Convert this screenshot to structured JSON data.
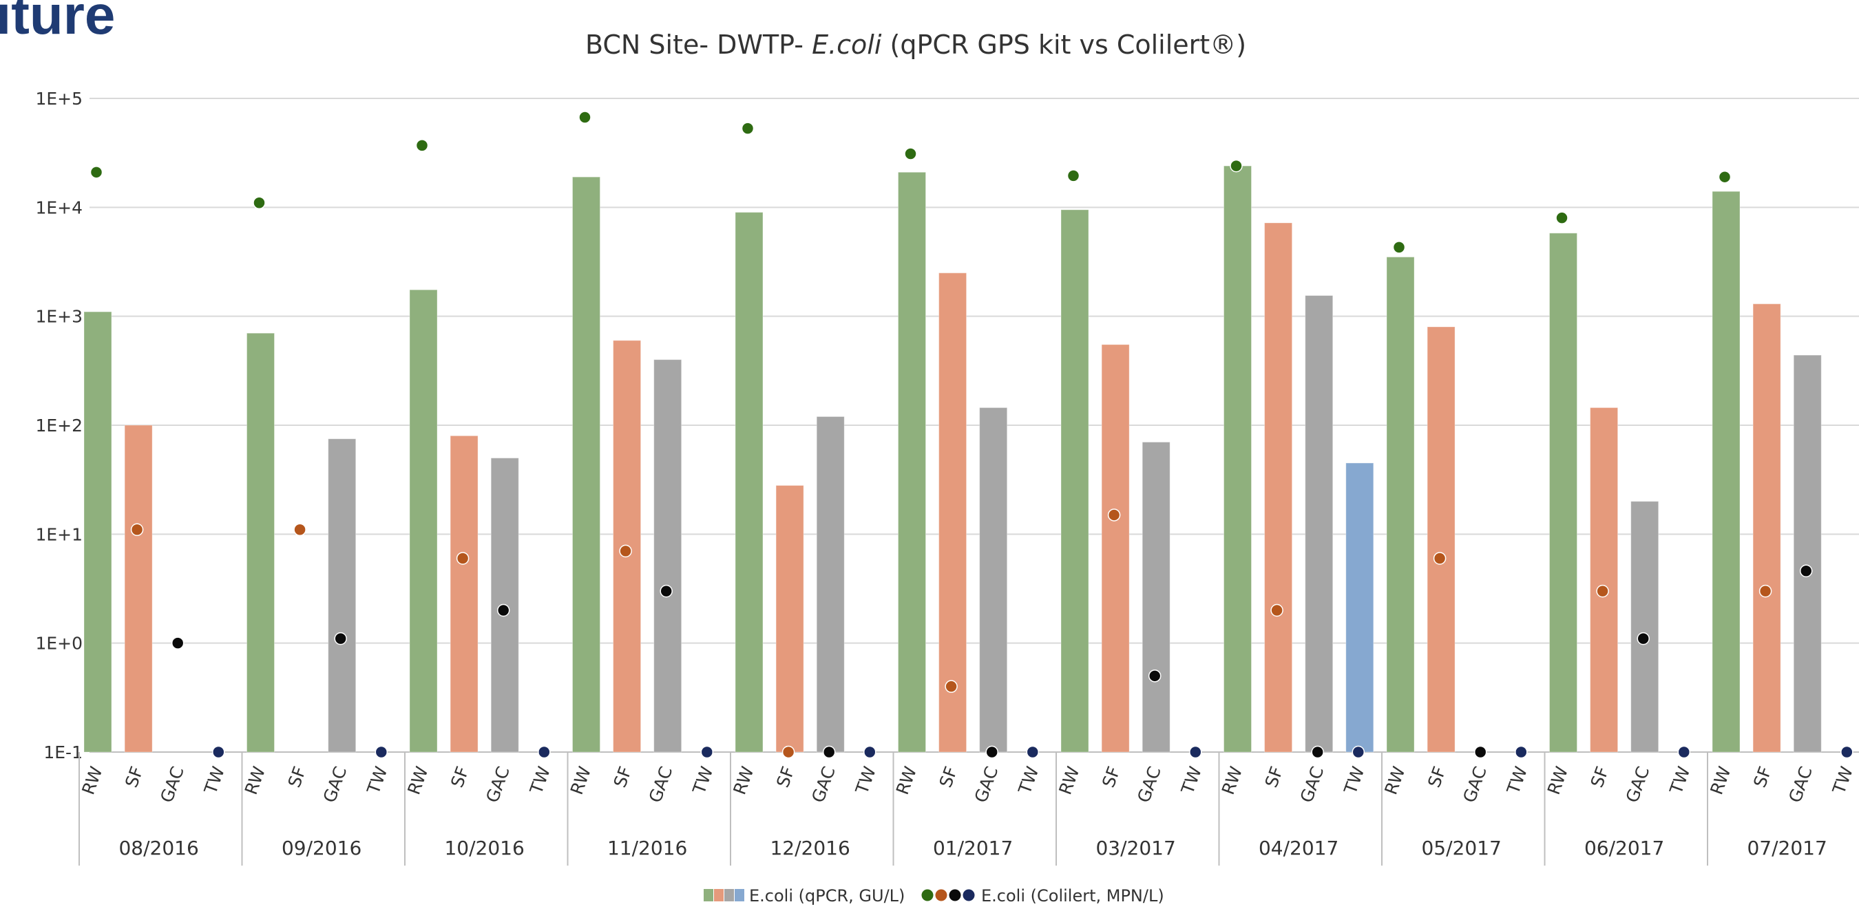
{
  "slide": {
    "heading": "iture"
  },
  "chart_data": {
    "type": "bar",
    "title": "BCN Site- DWTP- E.coli (qPCR GPS kit vs Colilert®)",
    "title_parts": [
      "BCN Site- DWTP- ",
      "E.coli",
      " (qPCR GPS kit vs Colilert®)"
    ],
    "y_scale": "log",
    "ylim": [
      0.1,
      100000
    ],
    "y_ticks": [
      "1E-1",
      "1E+0",
      "1E+1",
      "1E+2",
      "1E+3",
      "1E+4",
      "1E+5"
    ],
    "grid": true,
    "legend_position": "bottom",
    "categories": [
      "RW",
      "SF",
      "GAC",
      "TW"
    ],
    "groups": [
      "08/2016",
      "09/2016",
      "10/2016",
      "11/2016",
      "12/2016",
      "01/2017",
      "03/2017",
      "04/2017",
      "05/2017",
      "06/2017",
      "07/2017"
    ],
    "bar_colors": {
      "RW": "#8fb07d",
      "SF": "#e59a7c",
      "GAC": "#a6a6a6",
      "TW": "#86a8d0"
    },
    "point_colors": {
      "RW": "#2e6b12",
      "SF": "#b5561c",
      "GAC": "#0a0a0a",
      "TW": "#1a2a5e"
    },
    "series": [
      {
        "name": "E.coli (qPCR, GU/L)",
        "kind": "bar",
        "values": [
          [
            1100,
            100,
            null,
            null
          ],
          [
            700,
            null,
            75,
            null
          ],
          [
            1750,
            80,
            50,
            null
          ],
          [
            19000,
            600,
            400,
            null
          ],
          [
            9000,
            28,
            120,
            null
          ],
          [
            21000,
            2500,
            145,
            null
          ],
          [
            9500,
            550,
            70,
            null
          ],
          [
            24000,
            7200,
            1550,
            45
          ],
          [
            3500,
            800,
            null,
            null
          ],
          [
            5800,
            145,
            20,
            null
          ],
          [
            14000,
            1300,
            440,
            null
          ]
        ]
      },
      {
        "name": "E.coli (Colilert, MPN/L)",
        "kind": "point",
        "values": [
          [
            21000,
            11,
            1,
            0.1
          ],
          [
            11000,
            11,
            1.1,
            0.1
          ],
          [
            37000,
            6,
            2,
            0.1
          ],
          [
            67000,
            7,
            3,
            0.1
          ],
          [
            53000,
            0.1,
            0.1,
            0.1
          ],
          [
            31000,
            0.4,
            0.1,
            0.1
          ],
          [
            19500,
            15,
            0.5,
            0.1
          ],
          [
            24000,
            2,
            0.1,
            0.1
          ],
          [
            4300,
            6,
            0.1,
            0.1
          ],
          [
            8000,
            3,
            1.1,
            0.1
          ],
          [
            19000,
            3,
            4.6,
            0.1
          ]
        ]
      }
    ],
    "legend": [
      {
        "label": "E.coli (qPCR, GU/L)",
        "colors": [
          "#8fb07d",
          "#e59a7c",
          "#a6a6a6",
          "#86a8d0"
        ],
        "shape": "square"
      },
      {
        "label": "E.coli (Colilert, MPN/L)",
        "colors": [
          "#2e6b12",
          "#b5561c",
          "#0a0a0a",
          "#1a2a5e"
        ],
        "shape": "circle"
      }
    ]
  }
}
